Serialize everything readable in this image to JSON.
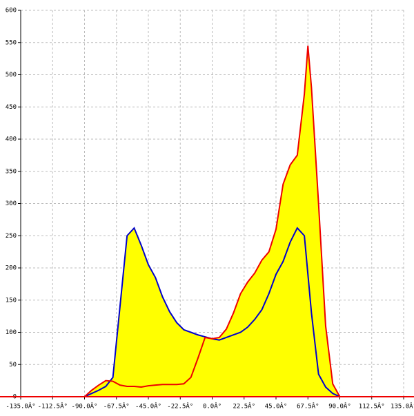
{
  "chart_data": {
    "type": "area-line",
    "xlim": [
      -135,
      135
    ],
    "ylim": [
      0,
      600
    ],
    "xticks": [
      {
        "value": -135,
        "label": "-135.0Â°"
      },
      {
        "value": -112.5,
        "label": "-112.5Â°"
      },
      {
        "value": -90,
        "label": "-90.0Â°"
      },
      {
        "value": -67.5,
        "label": "-67.5Â°"
      },
      {
        "value": -45,
        "label": "-45.0Â°"
      },
      {
        "value": -22.5,
        "label": "-22.5Â°"
      },
      {
        "value": 0,
        "label": "0.0Â°"
      },
      {
        "value": 22.5,
        "label": "22.5Â°"
      },
      {
        "value": 45,
        "label": "45.0Â°"
      },
      {
        "value": 67.5,
        "label": "67.5Â°"
      },
      {
        "value": 90,
        "label": "90.0Â°"
      },
      {
        "value": 112.5,
        "label": "112.5Â°"
      },
      {
        "value": 135,
        "label": "135.0Â°"
      }
    ],
    "yticks": [
      0,
      50,
      100,
      150,
      200,
      250,
      300,
      350,
      400,
      450,
      500,
      550,
      600
    ],
    "grid": true,
    "fill_color": "#ffff00",
    "series": [
      {
        "color": "#0000cc",
        "x": [
          -90,
          -85,
          -80,
          -75,
          -70,
          -65,
          -60,
          -55,
          -50,
          -45,
          -40,
          -35,
          -30,
          -25,
          -20,
          -15,
          -10,
          -5,
          0,
          5,
          10,
          15,
          20,
          25,
          30,
          35,
          40,
          45,
          50,
          55,
          60,
          65,
          70,
          75,
          80,
          85,
          90
        ],
        "values": [
          0,
          5,
          10,
          16,
          30,
          140,
          250,
          262,
          235,
          205,
          185,
          155,
          132,
          115,
          104,
          100,
          96,
          93,
          90,
          88,
          92,
          96,
          100,
          108,
          120,
          135,
          160,
          190,
          210,
          240,
          262,
          250,
          130,
          35,
          15,
          5,
          0
        ]
      },
      {
        "color": "#ee0000",
        "x": [
          -90,
          -85,
          -80,
          -75,
          -70,
          -65,
          -60,
          -55,
          -50,
          -45,
          -40,
          -35,
          -30,
          -25,
          -20,
          -15,
          -10,
          -5,
          0,
          5,
          10,
          15,
          20,
          25,
          30,
          35,
          40,
          45,
          50,
          55,
          60,
          65,
          67.5,
          70,
          75,
          80,
          85,
          90
        ],
        "values": [
          0,
          10,
          18,
          25,
          24,
          18,
          16,
          16,
          15,
          17,
          18,
          19,
          19,
          19,
          20,
          30,
          60,
          92,
          90,
          92,
          105,
          130,
          160,
          178,
          192,
          212,
          225,
          260,
          330,
          360,
          375,
          470,
          545,
          480,
          300,
          110,
          20,
          0
        ]
      }
    ]
  }
}
